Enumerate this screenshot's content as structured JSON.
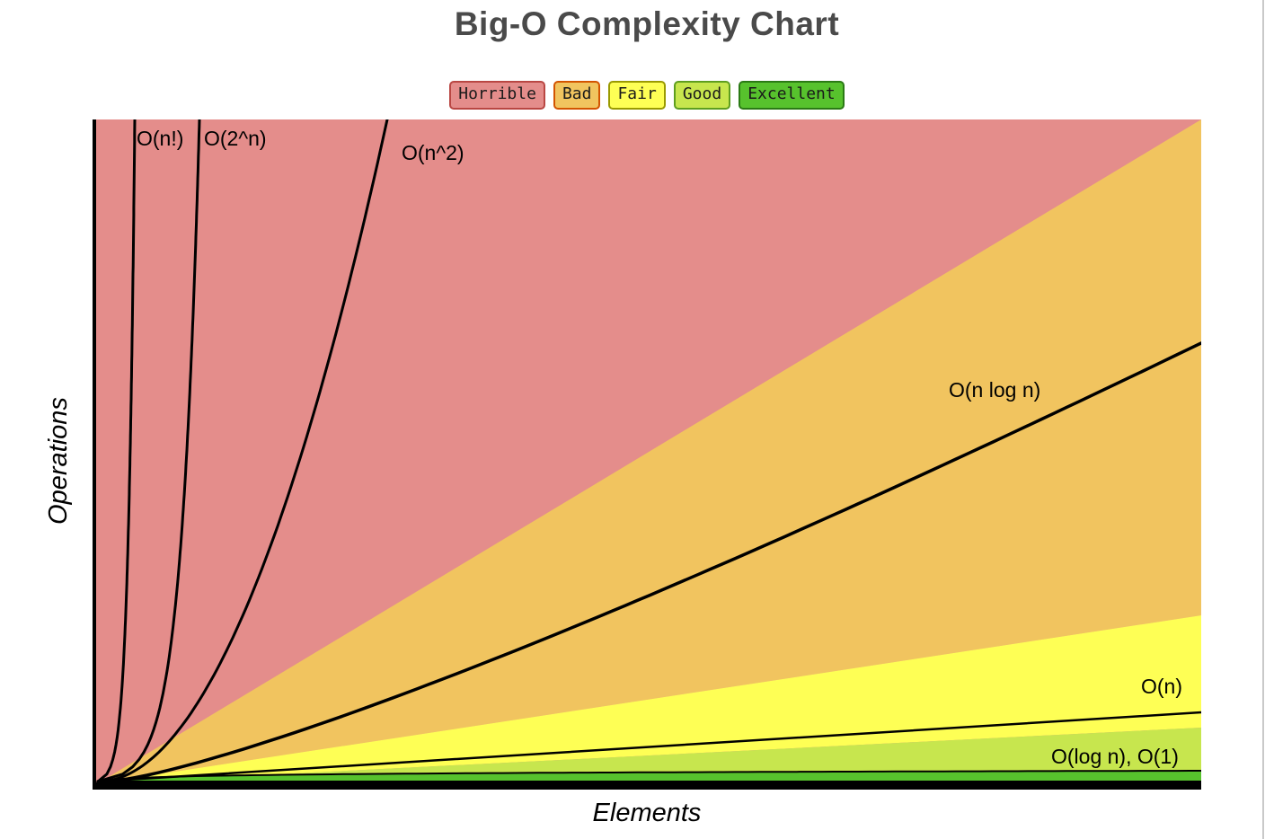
{
  "page": {
    "title": "Big-O Complexity Chart"
  },
  "axes": {
    "x": "Elements",
    "y": "Operations"
  },
  "legend": [
    {
      "label": "Horrible",
      "bg": "#e48d8b",
      "border": "#b94743"
    },
    {
      "label": "Bad",
      "bg": "#f1c45f",
      "border": "#d35400"
    },
    {
      "label": "Fair",
      "bg": "#feff55",
      "border": "#9a9a00"
    },
    {
      "label": "Good",
      "bg": "#c7e64e",
      "border": "#5e9e1f"
    },
    {
      "label": "Excellent",
      "bg": "#57c22d",
      "border": "#2b7a15"
    }
  ],
  "chart_data": {
    "type": "area",
    "title": "Big-O Complexity Chart",
    "xlabel": "Elements",
    "ylabel": "Operations",
    "ticks": "none (qualitative, unlabeled axes)",
    "legend_position": "top-center",
    "axis_color": "#000000",
    "curve_color": "#000000",
    "regions": [
      {
        "name": "Horrible",
        "color": "#e48d8b",
        "zone": "upper-left wedge above the exponential/quadratic growth area"
      },
      {
        "name": "Bad",
        "color": "#f1c45f",
        "zone": "wedge containing the O(n log n) curve"
      },
      {
        "name": "Fair",
        "color": "#feff55",
        "zone": "wedge containing the O(n) curve"
      },
      {
        "name": "Good",
        "color": "#c7e64e",
        "zone": "thin wedge between O(n) and O(log n)"
      },
      {
        "name": "Excellent",
        "color": "#57c22d",
        "zone": "thin strip under O(log n) along the x-axis"
      }
    ],
    "curves": [
      {
        "id": "factorial",
        "label": "O(n!)",
        "formula": "n!"
      },
      {
        "id": "exp2",
        "label": "O(2^n)",
        "formula": "2^n"
      },
      {
        "id": "quadratic",
        "label": "O(n^2)",
        "formula": "n^2"
      },
      {
        "id": "nlogn",
        "label": "O(n log n)",
        "formula": "n log n"
      },
      {
        "id": "linear",
        "label": "O(n)",
        "formula": "n"
      },
      {
        "id": "log",
        "label": "O(log n)",
        "formula": "log n"
      },
      {
        "id": "constant",
        "label": "O(1)",
        "formula": "1"
      }
    ],
    "curve_labels": [
      "O(n!)",
      "O(2^n)",
      "O(n^2)",
      "O(n log n)",
      "O(n)",
      "O(log n), O(1)"
    ]
  }
}
